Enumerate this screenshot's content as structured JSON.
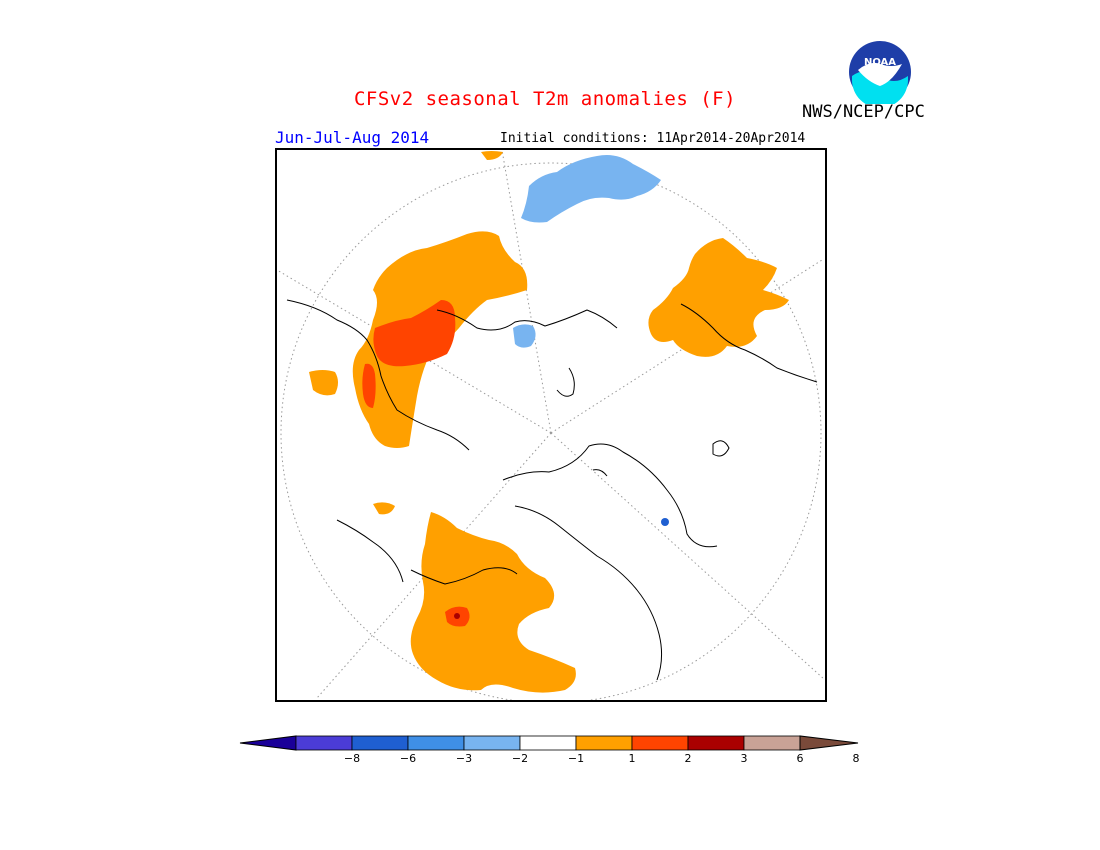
{
  "title": "CFSv2 seasonal T2m anomalies (F)",
  "period": "Jun-Jul-Aug 2014",
  "initial_conditions": "Initial conditions: 11Apr2014-20Apr2014",
  "agency": "NWS/NCEP/CPC",
  "logo": {
    "text": "NOAA",
    "icon": "noaa-logo-icon"
  },
  "colors": {
    "title": "#ff0000",
    "period": "#0000ff",
    "warm1": "#ffa000",
    "warm2": "#ff4400",
    "warm3": "#aa0000",
    "cool1": "#78b4f0"
  },
  "legend": {
    "bins": [
      {
        "color": "#1a0099"
      },
      {
        "color": "#4b3cd6"
      },
      {
        "color": "#1f5fd1"
      },
      {
        "color": "#3f8fe6"
      },
      {
        "color": "#78b4f0"
      },
      {
        "color": "#ffffff"
      },
      {
        "color": "#ffa000"
      },
      {
        "color": "#ff4400"
      },
      {
        "color": "#aa0000"
      },
      {
        "color": "#c9a296"
      },
      {
        "color": "#7a4a3a"
      }
    ],
    "ticks": [
      "−8",
      "−6",
      "−3",
      "−2",
      "−1",
      "1",
      "2",
      "3",
      "6",
      "8"
    ]
  },
  "regions": [
    {
      "name": "russia-warm",
      "level": "warm1"
    },
    {
      "name": "west-siberia-hot",
      "level": "warm2"
    },
    {
      "name": "north-america-warm",
      "level": "warm1"
    },
    {
      "name": "north-america-hot-spot",
      "level": "warm2"
    },
    {
      "name": "china-cool",
      "level": "cool1"
    },
    {
      "name": "europe-warm",
      "level": "warm1"
    }
  ]
}
